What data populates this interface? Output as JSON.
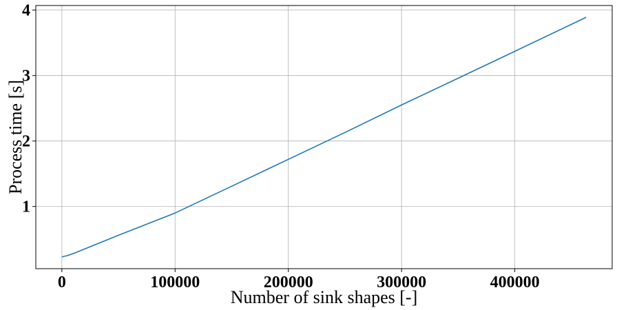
{
  "chart_data": {
    "type": "line",
    "title": "",
    "xlabel": "Number of sink shapes [-]",
    "ylabel": "Process time [s]",
    "xlim": [
      -23000,
      486000
    ],
    "ylim": [
      0.05,
      4.07
    ],
    "xticks": [
      0,
      100000,
      200000,
      300000,
      400000
    ],
    "xtick_labels": [
      "0",
      "100000",
      "200000",
      "300000",
      "400000"
    ],
    "yticks": [
      1,
      2,
      3,
      4
    ],
    "ytick_labels": [
      "1",
      "2",
      "3",
      "4"
    ],
    "grid": true,
    "legend": "none",
    "series": [
      {
        "color": "#1f77b4",
        "x": [
          0,
          5000,
          10000,
          20000,
          50000,
          100000,
          150000,
          200000,
          250000,
          300000,
          350000,
          400000,
          463000
        ],
        "y": [
          0.23,
          0.25,
          0.28,
          0.35,
          0.56,
          0.9,
          1.31,
          1.72,
          2.13,
          2.55,
          2.96,
          3.37,
          3.89
        ]
      }
    ]
  }
}
